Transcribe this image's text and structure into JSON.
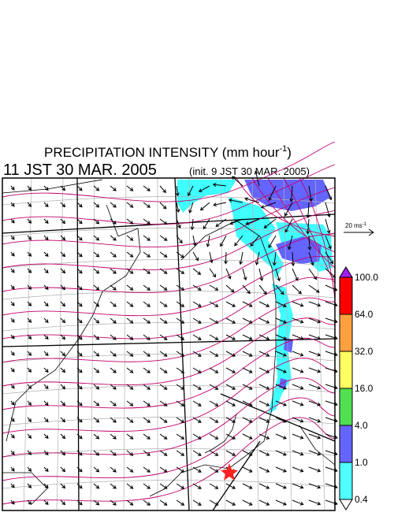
{
  "header": {
    "title_prefix": "PRECIPITATION INTENSITY (mm hour",
    "title_exponent": "-1",
    "title_suffix": ")",
    "valid_time": "11 JST 30 MAR. 2005",
    "init_time": "(init. 9 JST 30 MAR. 2005)"
  },
  "wind_scale": {
    "label": "20 ms",
    "exponent": "-1"
  },
  "colorbar": {
    "labels": [
      "100.0",
      "64.0",
      "32.0",
      "16.0",
      "4.0",
      "1.0",
      "0.4"
    ],
    "over_color": "#a020f0",
    "under_color": "#ffffff",
    "colors": [
      "#ff0000",
      "#ffa040",
      "#ffff60",
      "#50e050",
      "#6464ff",
      "#50ffff"
    ]
  }
}
